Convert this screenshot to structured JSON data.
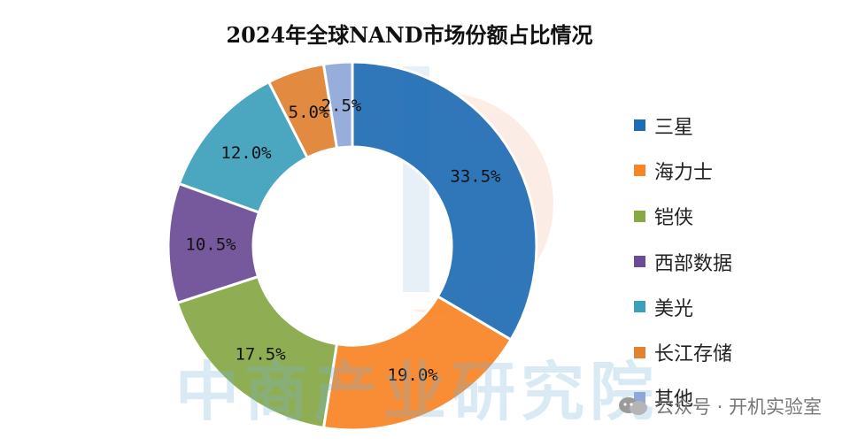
{
  "chart_data": {
    "type": "pie",
    "donut": true,
    "title": "2024年全球NAND市场份额占比情况",
    "categories": [
      "三星",
      "海力士",
      "铠侠",
      "西部数据",
      "美光",
      "长江存储",
      "其他"
    ],
    "values": [
      33.5,
      19.0,
      17.5,
      10.5,
      12.0,
      5.0,
      2.5
    ],
    "data_labels": [
      "33.5%",
      "19.0%",
      "17.5%",
      "10.5%",
      "12.0%",
      "5.0%",
      "2.5%"
    ],
    "colors": [
      "#1f6cb5",
      "#f98424",
      "#86a845",
      "#6b4c94",
      "#3ba0ba",
      "#e08230",
      "#8fa8d8"
    ],
    "legend_position": "right",
    "order_in_legend": [
      "三星",
      "海力士",
      "铠侠",
      "西部数据",
      "美光",
      "长江存储",
      "其他"
    ]
  },
  "watermark": "中商产业研究院",
  "footer": "公众号 · 开机实验室",
  "legend_order_values": [
    33.5,
    19.0,
    17.5,
    10.5,
    12.0,
    5.0,
    2.5
  ]
}
